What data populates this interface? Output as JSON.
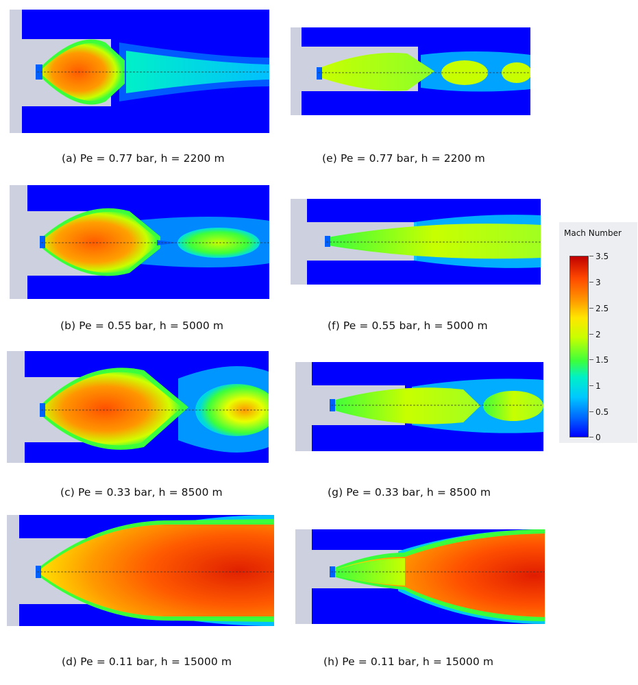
{
  "panels": [
    {
      "id": "a",
      "caption": "(a) Pe = 0.77 bar, h = 2200 m",
      "pe_bar": 0.77,
      "altitude_m": 2200
    },
    {
      "id": "b",
      "caption": "(b) Pe = 0.55 bar, h = 5000 m",
      "pe_bar": 0.55,
      "altitude_m": 5000
    },
    {
      "id": "c",
      "caption": "(c) Pe = 0.33 bar, h = 8500 m",
      "pe_bar": 0.33,
      "altitude_m": 8500
    },
    {
      "id": "d",
      "caption": "(d) Pe = 0.11 bar, h = 15000 m",
      "pe_bar": 0.11,
      "altitude_m": 15000
    },
    {
      "id": "e",
      "caption": "(e) Pe = 0.77 bar, h = 2200 m",
      "pe_bar": 0.77,
      "altitude_m": 2200
    },
    {
      "id": "f",
      "caption": "(f) Pe = 0.55 bar, h = 5000 m",
      "pe_bar": 0.55,
      "altitude_m": 5000
    },
    {
      "id": "g",
      "caption": "(g) Pe = 0.33 bar, h = 8500 m",
      "pe_bar": 0.33,
      "altitude_m": 8500
    },
    {
      "id": "h",
      "caption": "(h) Pe = 0.11 bar, h = 15000 m",
      "pe_bar": 0.11,
      "altitude_m": 15000
    }
  ],
  "legend": {
    "title": "Mach Number",
    "ticks": [
      "3.5",
      "3",
      "2.5",
      "2",
      "1.5",
      "1",
      "0.5",
      "0"
    ],
    "min": 0,
    "max": 3.5,
    "colormap": [
      "#0000ff",
      "#00c8ff",
      "#3cff3c",
      "#ffe600",
      "#ff4800",
      "#c00000"
    ]
  }
}
